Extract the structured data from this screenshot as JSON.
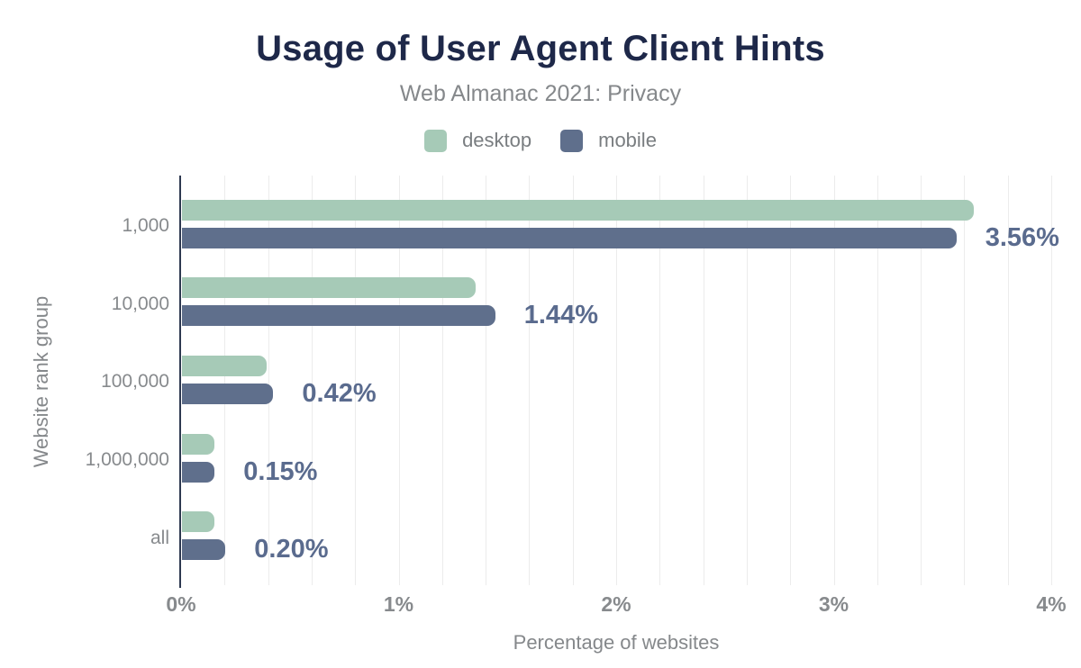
{
  "title": "Usage of User Agent Client Hints",
  "subtitle": "Web Almanac 2021: Privacy",
  "legend": {
    "items": [
      {
        "label": "desktop",
        "color": "#a6cab7"
      },
      {
        "label": "mobile",
        "color": "#5f6f8c"
      }
    ]
  },
  "chart_data": {
    "type": "bar",
    "orientation": "horizontal",
    "categories": [
      "1,000",
      "10,000",
      "100,000",
      "1,000,000",
      "all"
    ],
    "series": [
      {
        "name": "desktop",
        "color": "#a6cab7",
        "values": [
          3.64,
          1.35,
          0.39,
          0.15,
          0.15
        ]
      },
      {
        "name": "mobile",
        "color": "#5f6f8c",
        "values": [
          3.56,
          1.44,
          0.42,
          0.15,
          0.2
        ],
        "labels": [
          "3.56%",
          "1.44%",
          "0.42%",
          "0.15%",
          "0.20%"
        ]
      }
    ],
    "xlabel": "Percentage of websites",
    "ylabel": "Website rank group",
    "xlim": [
      0,
      4
    ],
    "x_ticks": [
      "0%",
      "1%",
      "2%",
      "3%",
      "4%"
    ],
    "x_tick_values": [
      0,
      1,
      2,
      3,
      4
    ],
    "minor_grid_step": 0.2,
    "grid": true,
    "legend_position": "top",
    "data_label_color": "#5a6b8e",
    "axis_line_color": "#2e3950",
    "gridline_color": "#ececec",
    "title_color": "#1e2849",
    "text_color": "#85888b"
  }
}
